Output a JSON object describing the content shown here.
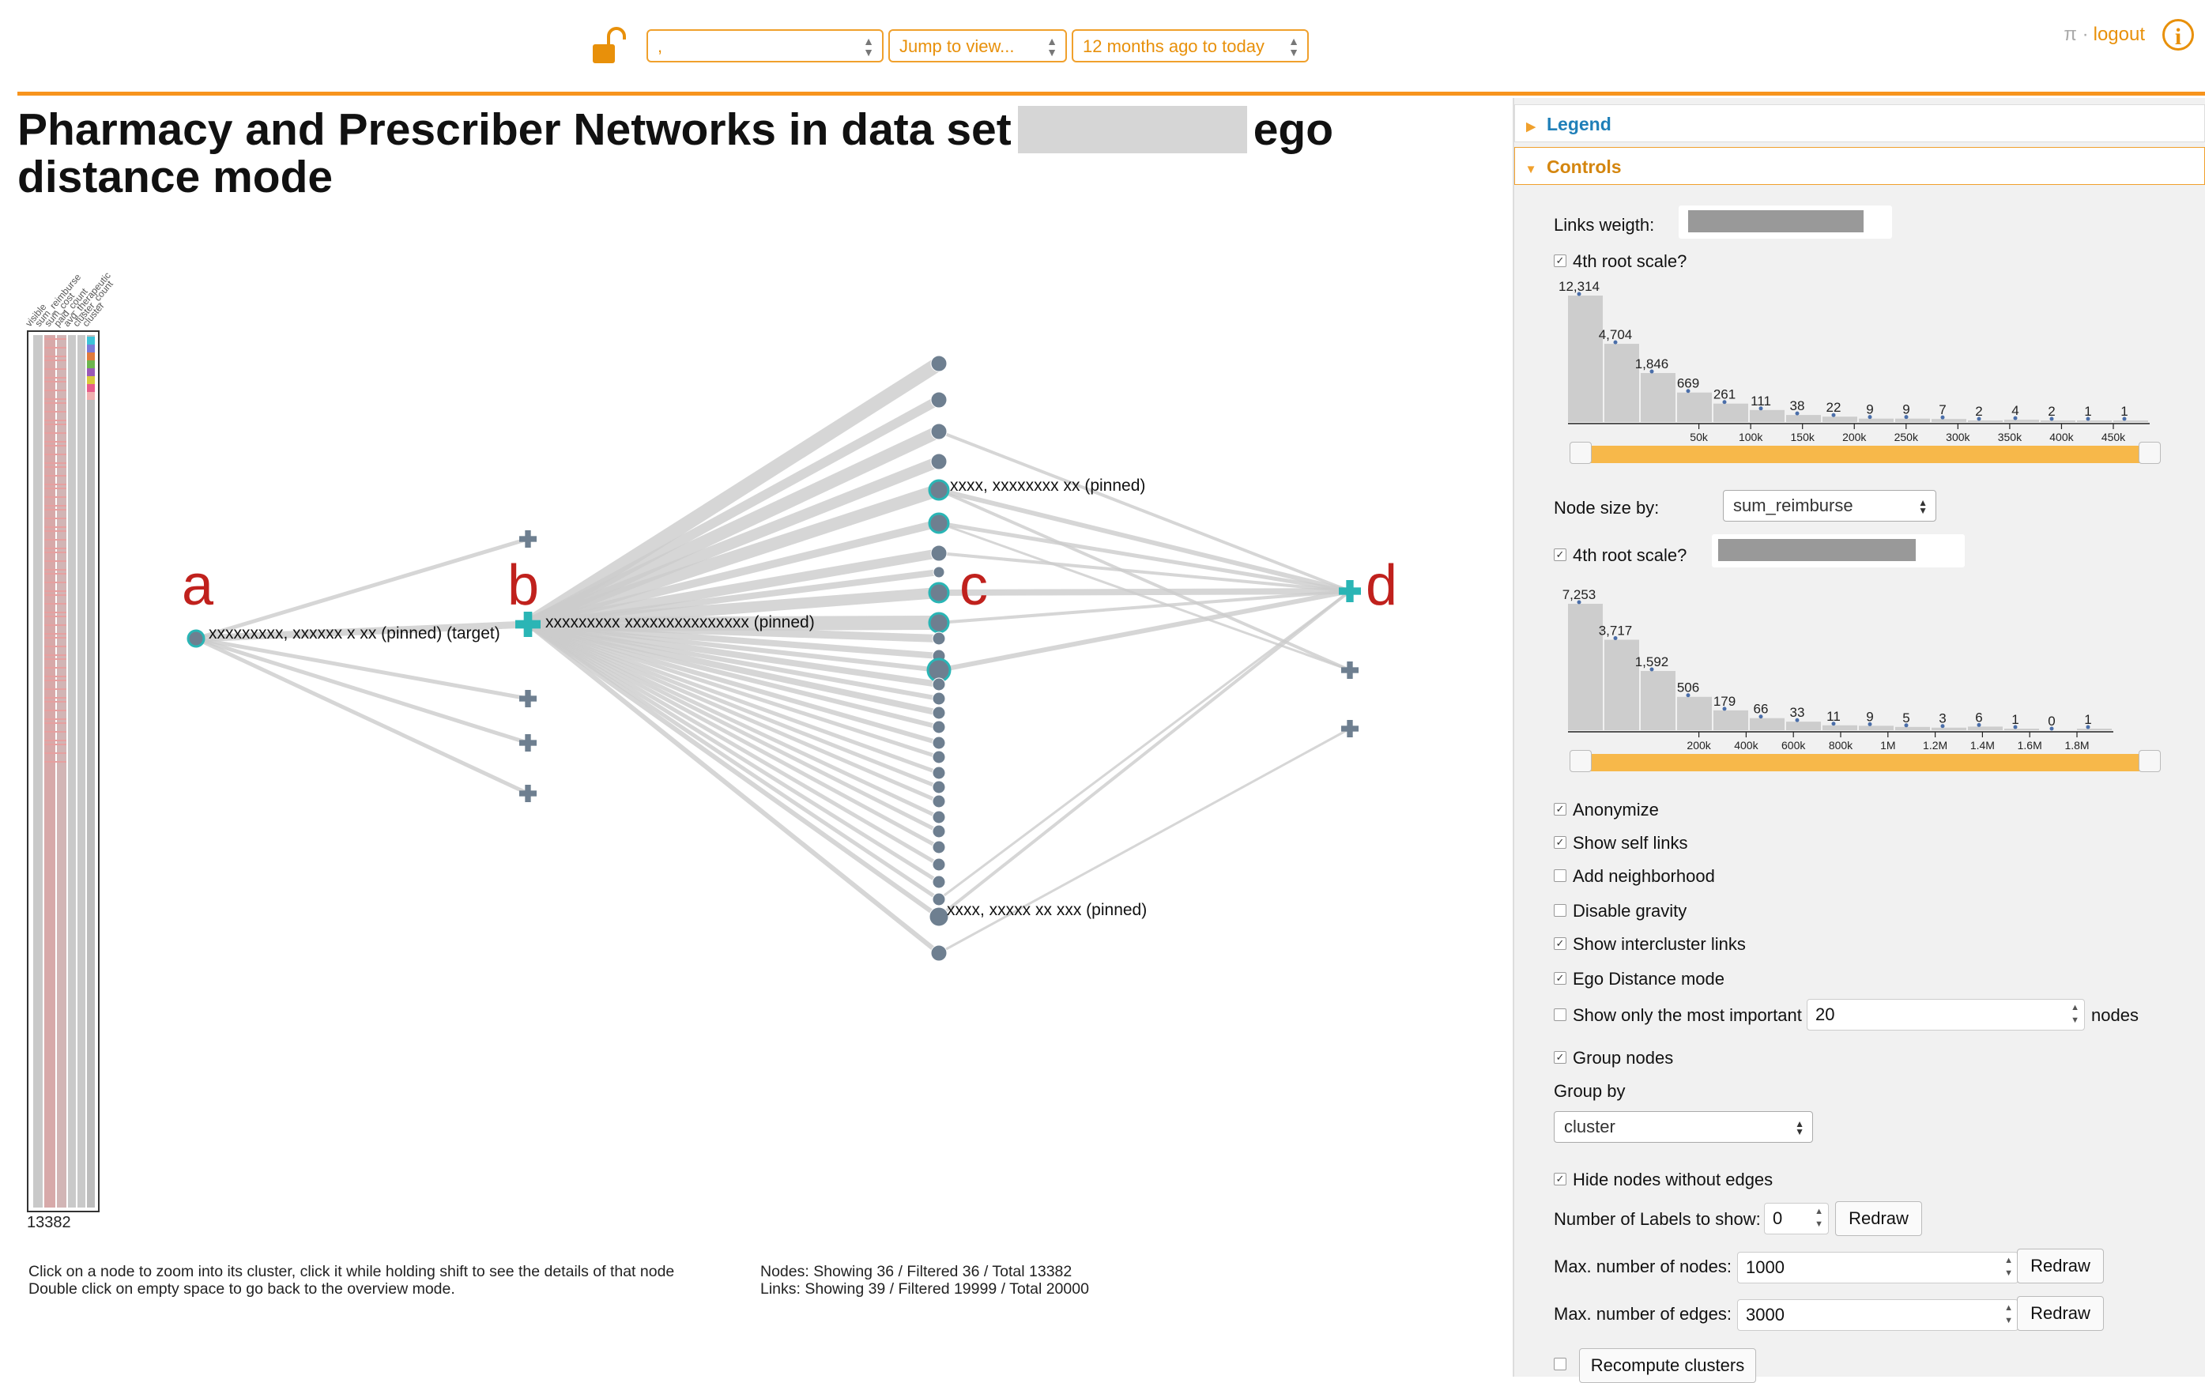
{
  "toolbar": {
    "select1_value": ",",
    "jump_view": "Jump to view...",
    "time_range": "12 months ago to today",
    "pi_symbol": "π ·",
    "logout": "logout",
    "info_symbol": "i"
  },
  "page": {
    "title_part1": "Pharmacy and Prescriber Networks in data set",
    "title_part2": "ego distance mode"
  },
  "matrix": {
    "column_labels": [
      "visible",
      "sum_reimburse",
      "sum_cost",
      "paid_count",
      "avg_therapeutic",
      "cluster_count",
      "cluster"
    ],
    "total_count": "13382"
  },
  "graph": {
    "letters": [
      "a",
      "b",
      "c",
      "d"
    ],
    "labels": {
      "a": "xxxxxxxxx, xxxxxx x xx (pinned) (target)",
      "b": "xxxxxxxxx xxxxxxxxxxxxxxx (pinned)",
      "c_top": "xxxx, xxxxxxxx xx (pinned)",
      "c_bottom": "xxxx, xxxxx xx xxx (pinned)"
    },
    "colors": {
      "node": "#6e7f90",
      "highlight": "#2ab5b5",
      "link": "#cccccc",
      "letter": "#c0211d"
    }
  },
  "help": {
    "line1": "Click on a node to zoom into its cluster, click it while holding shift to see the details of that node",
    "line2": "Double click on empty space to go back to the overview mode.",
    "nodes_stats": "Nodes: Showing 36 / Filtered 36 / Total 13382",
    "links_stats": "Links: Showing 39 / Filtered 19999 / Total 20000"
  },
  "panel": {
    "legend_header": "Legend",
    "controls_header": "Controls",
    "links_weight_label": "Links weigth:",
    "root_scale_label": "4th root scale?",
    "node_size_label": "Node size by:",
    "node_size_value": "sum_reimburse",
    "checkboxes": [
      {
        "label": "Anonymize",
        "checked": true
      },
      {
        "label": "Show self links",
        "checked": true
      },
      {
        "label": "Add neighborhood",
        "checked": false
      },
      {
        "label": "Disable gravity",
        "checked": false
      },
      {
        "label": "Show intercluster links",
        "checked": true
      },
      {
        "label": "Ego Distance mode",
        "checked": true
      }
    ],
    "show_important_label": "Show only the most important",
    "show_important_value": "20",
    "nodes_suffix": "nodes",
    "group_nodes_label": "Group nodes",
    "group_by_label": "Group by",
    "group_by_value": "cluster",
    "hide_nodes_label": "Hide nodes without edges",
    "num_labels_label": "Number of Labels to show:",
    "num_labels_value": "0",
    "redraw": "Redraw",
    "max_nodes_label": "Max. number of nodes:",
    "max_nodes_value": "1000",
    "max_edges_label": "Max. number of edges:",
    "max_edges_value": "3000",
    "recompute_label": "Recompute clusters",
    "check_mark": "✓"
  },
  "chart_data": [
    {
      "type": "bar",
      "values": [
        12314,
        4704,
        1846,
        669,
        261,
        111,
        38,
        22,
        9,
        9,
        7,
        2,
        4,
        2,
        1,
        1
      ],
      "value_labels": [
        "12,314",
        "4,704",
        "1,846",
        "669",
        "261",
        "111",
        "38",
        "22",
        "9",
        "9",
        "7",
        "2",
        "4",
        "2",
        "1",
        "1"
      ],
      "tick_labels": [
        "50k",
        "100k",
        "150k",
        "200k",
        "250k",
        "300k",
        "350k",
        "400k",
        "450k"
      ],
      "xlabel": "",
      "ylabel": ""
    },
    {
      "type": "bar",
      "values": [
        7253,
        3717,
        1592,
        506,
        179,
        66,
        33,
        11,
        9,
        5,
        3,
        6,
        1,
        0,
        1
      ],
      "value_labels": [
        "7,253",
        "3,717",
        "1,592",
        "506",
        "179",
        "66",
        "33",
        "11",
        "9",
        "5",
        "3",
        "6",
        "1",
        "0",
        "1"
      ],
      "tick_labels": [
        "200k",
        "400k",
        "600k",
        "800k",
        "1M",
        "1.2M",
        "1.4M",
        "1.6M",
        "1.8M"
      ],
      "xlabel": "",
      "ylabel": ""
    }
  ]
}
